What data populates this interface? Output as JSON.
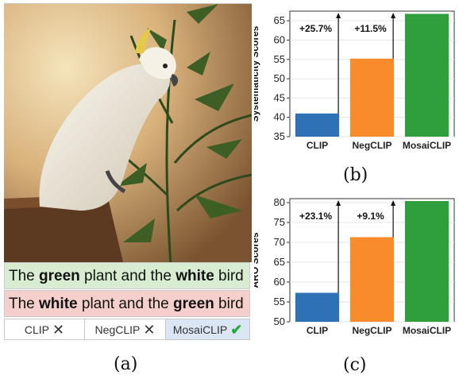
{
  "panel_a": {
    "label": "(a)",
    "caption_positive": {
      "p1": "The ",
      "b1": "green",
      "p2": " plant and the ",
      "b2": "white",
      "p3": " bird"
    },
    "caption_negative": {
      "p1": "The ",
      "b1": "white",
      "p2": " plant and the ",
      "b2": "green",
      "p3": " bird"
    },
    "models": [
      {
        "name": "CLIP",
        "result": "x"
      },
      {
        "name": "NegCLIP",
        "result": "x"
      },
      {
        "name": "MosaiCLIP",
        "result": "check"
      }
    ]
  },
  "colors": {
    "clip": "#2e72b5",
    "negclip": "#f98b2c",
    "mosaiclip": "#2f9e3d"
  },
  "chart_data": [
    {
      "panel_label": "(b)",
      "type": "bar",
      "categories": [
        "CLIP",
        "NegCLIP",
        "MosaiCLIP"
      ],
      "values": [
        41,
        55.2,
        66.8
      ],
      "ylabel": "Systematicity Scores",
      "ylim": [
        35,
        67.5
      ],
      "yticks": [
        35,
        40,
        45,
        50,
        55,
        60,
        65
      ],
      "annotations": [
        "+25.7%",
        "+11.5%"
      ],
      "grid": true
    },
    {
      "panel_label": "(c)",
      "type": "bar",
      "categories": [
        "CLIP",
        "NegCLIP",
        "MosaiCLIP"
      ],
      "values": [
        57.3,
        71.3,
        80.4
      ],
      "ylabel": "ARO Scores",
      "ylim": [
        50,
        81
      ],
      "yticks": [
        50,
        55,
        60,
        65,
        70,
        75,
        80
      ],
      "annotations": [
        "+23.1%",
        "+9.1%"
      ],
      "grid": true
    }
  ]
}
